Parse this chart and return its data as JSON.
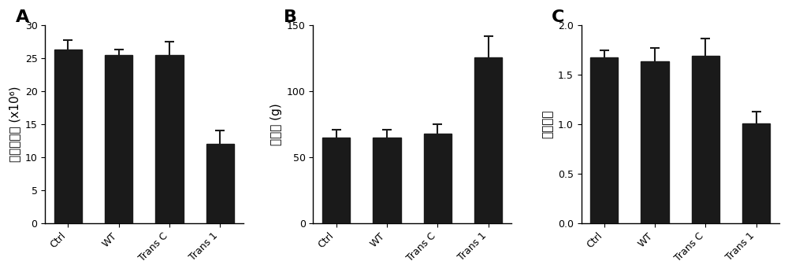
{
  "panels": [
    {
      "label": "A",
      "categories": [
        "Ctrl",
        "WT",
        "Trans C",
        "Trans 1"
      ],
      "values": [
        26.3,
        25.5,
        25.5,
        12.0
      ],
      "errors": [
        1.5,
        0.8,
        2.0,
        2.0
      ],
      "ylabel": "卵切拍出量 (x10⁶)",
      "ylim": [
        0,
        30
      ],
      "yticks": [
        0,
        5,
        10,
        15,
        20,
        25,
        30
      ]
    },
    {
      "label": "B",
      "categories": [
        "Ctrl",
        "WT",
        "Trans C",
        "Trans 1"
      ],
      "values": [
        65.0,
        65.0,
        68.0,
        126.0
      ],
      "errors": [
        6.0,
        6.0,
        7.0,
        16.0
      ],
      "ylabel": "体增重 (g)",
      "ylim": [
        0,
        150
      ],
      "yticks": [
        0,
        50,
        100,
        150
      ]
    },
    {
      "label": "C",
      "categories": [
        "Ctrl",
        "WT",
        "Trans C",
        "Trans 1"
      ],
      "values": [
        1.68,
        1.64,
        1.69,
        1.01
      ],
      "errors": [
        0.07,
        0.13,
        0.18,
        0.12
      ],
      "ylabel": "病变计分",
      "ylim": [
        0,
        2.0
      ],
      "yticks": [
        0,
        0.5,
        1.0,
        1.5,
        2.0
      ]
    }
  ],
  "bar_color": "#1a1a1a",
  "bar_width": 0.55,
  "error_color": "#1a1a1a",
  "background_color": "#ffffff",
  "tick_fontsize": 9,
  "ylabel_fontsize": 11,
  "panel_letter_fontsize": 16
}
